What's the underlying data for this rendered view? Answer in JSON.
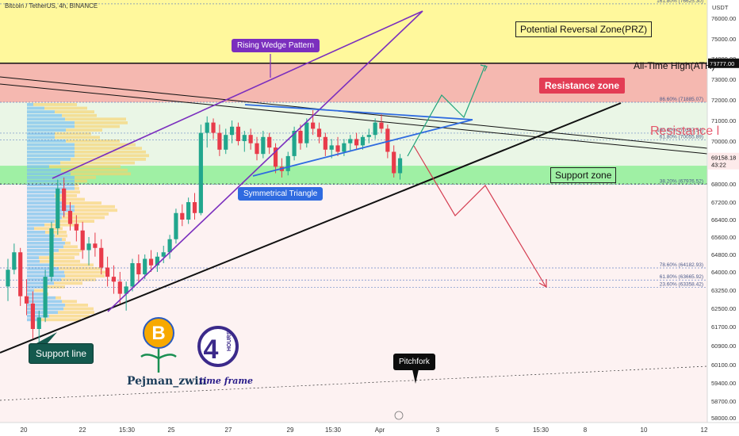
{
  "header": {
    "title": "Bitcoin / TetherUS, 4h, BINANCE",
    "currency": "USDT"
  },
  "chart_data": {
    "type": "candlestick",
    "title": "Bitcoin / TetherUS, 4h, BINANCE",
    "y_unit": "USDT",
    "ylim": [
      57800,
      77000
    ],
    "price_ticks": [
      "76000.00",
      "75000.00",
      "74000.00",
      "73000.00",
      "72000.00",
      "71000.00",
      "70000.00",
      "68000.00",
      "67200.00",
      "66400.00",
      "65600.00",
      "64800.00",
      "64000.00",
      "63250.00",
      "62500.00",
      "61700.00",
      "60900.00",
      "60100.00",
      "59400.00",
      "58700.00",
      "58000.00"
    ],
    "date_ticks": [
      "20",
      "22",
      "15:30",
      "25",
      "27",
      "29",
      "15:30",
      "Apr",
      "3",
      "5",
      "15:30",
      "8",
      "10",
      "12"
    ],
    "current_price": "69158.18",
    "countdown": "43:22",
    "ath_price": "73777.00",
    "fib_levels": [
      {
        "label": "161.80% (76625.30)",
        "price": 76625.3
      },
      {
        "label": "86.60% (71885.07)",
        "price": 71885.07
      },
      {
        "label": "100.00% (70387.54)",
        "price": 70387.54
      },
      {
        "label": "61.80% (70055.89)",
        "price": 70055.89
      },
      {
        "label": "38.20% (67976.52)",
        "price": 67976.52
      },
      {
        "label": "78.60% (64182.93)",
        "price": 64182.93
      },
      {
        "label": "61.80% (63665.92)",
        "price": 63665.92
      },
      {
        "label": "23.60% (63358.42)",
        "price": 63358.42
      }
    ],
    "candles": [
      [
        63400,
        64600,
        62800,
        64100
      ],
      [
        64100,
        65300,
        63900,
        64900
      ],
      [
        64900,
        65100,
        62600,
        63000
      ],
      [
        63000,
        63700,
        62200,
        62700
      ],
      [
        62700,
        63200,
        61200,
        61600
      ],
      [
        61600,
        62400,
        61000,
        62100
      ],
      [
        62100,
        64100,
        61900,
        63800
      ],
      [
        63800,
        66300,
        63600,
        66000
      ],
      [
        66000,
        68200,
        65700,
        67800
      ],
      [
        67800,
        68300,
        66500,
        66800
      ],
      [
        66800,
        67200,
        65900,
        66200
      ],
      [
        66200,
        66600,
        65400,
        65900
      ],
      [
        65900,
        66300,
        64600,
        65000
      ],
      [
        65000,
        65600,
        64300,
        65300
      ],
      [
        65300,
        65800,
        64700,
        65100
      ],
      [
        65100,
        65500,
        63900,
        64200
      ],
      [
        64200,
        64700,
        63400,
        63800
      ],
      [
        63800,
        64300,
        63100,
        63600
      ],
      [
        63600,
        64000,
        62700,
        63100
      ],
      [
        63100,
        63600,
        62400,
        63400
      ],
      [
        63400,
        64600,
        63200,
        64400
      ],
      [
        64400,
        64800,
        63600,
        63900
      ],
      [
        63900,
        64800,
        63700,
        64600
      ],
      [
        64600,
        65000,
        64000,
        64300
      ],
      [
        64300,
        64900,
        64000,
        64700
      ],
      [
        64700,
        65200,
        64400,
        64900
      ],
      [
        64900,
        65700,
        64600,
        65500
      ],
      [
        65500,
        66900,
        65300,
        66700
      ],
      [
        66700,
        67100,
        66100,
        66400
      ],
      [
        66400,
        67400,
        66200,
        67200
      ],
      [
        67200,
        67600,
        66400,
        66700
      ],
      [
        66700,
        70800,
        66600,
        70400
      ],
      [
        70400,
        71200,
        69700,
        70900
      ],
      [
        70900,
        71100,
        70100,
        70400
      ],
      [
        70400,
        70800,
        69300,
        69600
      ],
      [
        69600,
        70600,
        69400,
        70300
      ],
      [
        70300,
        71000,
        69900,
        70700
      ],
      [
        70700,
        70900,
        69800,
        70000
      ],
      [
        70000,
        70500,
        69500,
        70300
      ],
      [
        70300,
        70600,
        69600,
        69900
      ],
      [
        69900,
        70200,
        69100,
        69400
      ],
      [
        69400,
        70500,
        69200,
        70200
      ],
      [
        70200,
        70400,
        69400,
        69700
      ],
      [
        69700,
        69900,
        68500,
        68800
      ],
      [
        68800,
        69200,
        68300,
        68600
      ],
      [
        68600,
        69500,
        68400,
        69300
      ],
      [
        69300,
        70700,
        69100,
        70500
      ],
      [
        70500,
        70800,
        69600,
        69900
      ],
      [
        69900,
        71100,
        69700,
        70900
      ],
      [
        70900,
        71500,
        70300,
        70600
      ],
      [
        70600,
        70900,
        69900,
        70200
      ],
      [
        70200,
        70400,
        69300,
        69600
      ],
      [
        69600,
        70100,
        69200,
        69800
      ],
      [
        69800,
        70200,
        69300,
        69500
      ],
      [
        69500,
        70100,
        69300,
        69900
      ],
      [
        69900,
        70300,
        69500,
        70100
      ],
      [
        70100,
        70400,
        69600,
        69800
      ],
      [
        69800,
        70300,
        69600,
        70200
      ],
      [
        70200,
        70600,
        69900,
        70300
      ],
      [
        70300,
        71100,
        70100,
        70900
      ],
      [
        70900,
        71300,
        70400,
        70600
      ],
      [
        70600,
        70800,
        69200,
        69500
      ],
      [
        69500,
        69800,
        68300,
        68500
      ],
      [
        68500,
        69400,
        68200,
        69200
      ]
    ],
    "zones": [
      {
        "name": "Potential Reversal Zone(PRZ)",
        "from": 73777,
        "to": 77000
      },
      {
        "name": "Resistance zone",
        "from": 71885,
        "to": 73777
      },
      {
        "name": "Support zone",
        "from": 67976,
        "to": 68850
      }
    ],
    "annotations": [
      "Rising Wedge Pattern",
      "Symmetrical Triangle",
      "Support line",
      "Pitchfork",
      "All-Time High(ATH)"
    ]
  },
  "labels": {
    "prz": "Potential Reversal Zone(PRZ)",
    "ath": "All-Time High(ATH)",
    "resistance": "Resistance zone",
    "resistance_ghost": "Resistance l",
    "support": "Support zone",
    "wedge": "Rising Wedge Pattern",
    "triangle": "Symmetrical Triangle",
    "support_line": "Support line",
    "pitchfork": "Pitchfork"
  },
  "branding": {
    "author": "Pejman_zwin",
    "hours_badge": "HOURS",
    "hours_number": "4",
    "timeframe": "time frame"
  },
  "colors": {
    "up": "#21a68d",
    "down": "#e83b4a",
    "prz": "#fff89c",
    "resistance": "#f5b8b0",
    "support": "#9ff0a4",
    "wedge": "#7b2fbe",
    "triangle": "#2f6be0",
    "current_price_bg": "#e83b4a"
  }
}
